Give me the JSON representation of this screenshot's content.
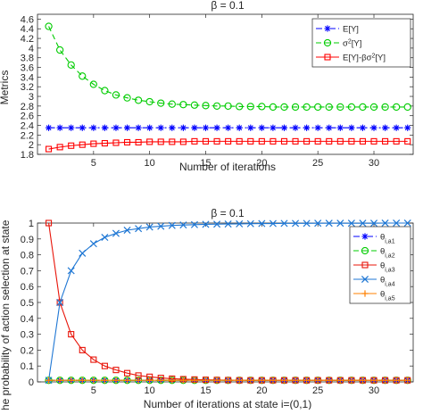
{
  "chart_data": [
    {
      "type": "line",
      "title": "β = 0.1",
      "xlabel": "Number of iterations",
      "ylabel": "Metrics",
      "xlim": [
        0,
        33.5
      ],
      "ylim": [
        1.8,
        4.7
      ],
      "xticks": [
        5,
        10,
        15,
        20,
        25,
        30
      ],
      "yticks": [
        1.8,
        2.0,
        2.2,
        2.4,
        2.6,
        2.8,
        3.0,
        3.2,
        3.4,
        3.6,
        3.8,
        4.0,
        4.2,
        4.4,
        4.6
      ],
      "ytick_labels": [
        "1.8",
        "2",
        "2.2",
        "2.4",
        "2.6",
        "2.8",
        "3",
        "3.2",
        "3.4",
        "3.6",
        "3.8",
        "4",
        "4.2",
        "4.4",
        "4.6"
      ],
      "grid": false,
      "legend_position": "top-right",
      "x": [
        1,
        2,
        3,
        4,
        5,
        6,
        7,
        8,
        9,
        10,
        11,
        12,
        13,
        14,
        15,
        16,
        17,
        18,
        19,
        20,
        21,
        22,
        23,
        24,
        25,
        26,
        27,
        28,
        29,
        30,
        31,
        32,
        33
      ],
      "series": [
        {
          "name": "E[Y]",
          "name_parts": [
            "E[Y]"
          ],
          "color": "#0000ff",
          "marker": "asterisk",
          "linestyle": "dashdot",
          "values": [
            2.35,
            2.35,
            2.35,
            2.35,
            2.35,
            2.35,
            2.35,
            2.35,
            2.35,
            2.35,
            2.35,
            2.35,
            2.35,
            2.35,
            2.35,
            2.35,
            2.35,
            2.35,
            2.35,
            2.35,
            2.35,
            2.35,
            2.35,
            2.35,
            2.35,
            2.35,
            2.35,
            2.35,
            2.35,
            2.35,
            2.35,
            2.35,
            2.35
          ]
        },
        {
          "name": "σ2[Y]",
          "name_parts": [
            "σ",
            "2",
            "[Y]"
          ],
          "color": "#00cc00",
          "marker": "circle",
          "linestyle": "dashed",
          "values": [
            4.45,
            3.96,
            3.65,
            3.42,
            3.25,
            3.12,
            3.03,
            2.97,
            2.92,
            2.89,
            2.86,
            2.84,
            2.83,
            2.82,
            2.81,
            2.8,
            2.8,
            2.79,
            2.79,
            2.79,
            2.78,
            2.78,
            2.78,
            2.78,
            2.78,
            2.78,
            2.78,
            2.78,
            2.78,
            2.78,
            2.78,
            2.78,
            2.78
          ]
        },
        {
          "name": "E[Y]-βσ2[Y]",
          "name_parts": [
            "E[Y]-βσ",
            "2",
            "[Y]"
          ],
          "color": "#ff0000",
          "marker": "square",
          "linestyle": "solid",
          "values": [
            1.91,
            1.95,
            1.98,
            2.0,
            2.02,
            2.03,
            2.04,
            2.05,
            2.05,
            2.06,
            2.06,
            2.06,
            2.06,
            2.07,
            2.07,
            2.07,
            2.07,
            2.07,
            2.07,
            2.07,
            2.07,
            2.07,
            2.07,
            2.07,
            2.07,
            2.07,
            2.07,
            2.07,
            2.07,
            2.07,
            2.07,
            2.07,
            2.07
          ]
        }
      ]
    },
    {
      "type": "line",
      "title": "β = 0.1",
      "xlabel": "Number of iterations at state i=(0,1)",
      "ylabel": "The probability of action selection at state",
      "xlim": [
        0,
        33.5
      ],
      "ylim": [
        0,
        1
      ],
      "xticks": [
        5,
        10,
        15,
        20,
        25,
        30
      ],
      "yticks": [
        0,
        0.1,
        0.2,
        0.3,
        0.4,
        0.5,
        0.6,
        0.7,
        0.8,
        0.9,
        1.0
      ],
      "ytick_labels": [
        "0",
        "0.1",
        "0.2",
        "0.3",
        "0.4",
        "0.5",
        "0.6",
        "0.7",
        "0.8",
        "0.9",
        "1"
      ],
      "grid": false,
      "legend_position": "right",
      "x": [
        1,
        2,
        3,
        4,
        5,
        6,
        7,
        8,
        9,
        10,
        11,
        12,
        13,
        14,
        15,
        16,
        17,
        18,
        19,
        20,
        21,
        22,
        23,
        24,
        25,
        26,
        27,
        28,
        29,
        30,
        31,
        32,
        33
      ],
      "series": [
        {
          "name": "θi,a1",
          "name_parts": [
            "θ",
            "i,a1"
          ],
          "color": "#0000ff",
          "marker": "asterisk",
          "linestyle": "dashdot",
          "values": [
            0.01,
            0.01,
            0.01,
            0.01,
            0.01,
            0.01,
            0.01,
            0.01,
            0.01,
            0.01,
            0.01,
            0.01,
            0.01,
            0.01,
            0.01,
            0.01,
            0.01,
            0.01,
            0.01,
            0.01,
            0.01,
            0.01,
            0.01,
            0.01,
            0.01,
            0.01,
            0.01,
            0.01,
            0.01,
            0.01,
            0.01,
            0.01,
            0.01
          ]
        },
        {
          "name": "θi,a2",
          "name_parts": [
            "θ",
            "i,a2"
          ],
          "color": "#00cc00",
          "marker": "circle",
          "linestyle": "dashed",
          "values": [
            0.01,
            0.01,
            0.01,
            0.01,
            0.01,
            0.01,
            0.01,
            0.01,
            0.01,
            0.01,
            0.01,
            0.01,
            0.01,
            0.01,
            0.01,
            0.01,
            0.01,
            0.01,
            0.01,
            0.01,
            0.01,
            0.01,
            0.01,
            0.01,
            0.01,
            0.01,
            0.01,
            0.01,
            0.01,
            0.01,
            0.01,
            0.01,
            0.01
          ]
        },
        {
          "name": "θi,a3",
          "name_parts": [
            "θ",
            "i,a3"
          ],
          "color": "#e8150a",
          "marker": "square",
          "linestyle": "solid",
          "values": [
            1.0,
            0.5,
            0.3,
            0.2,
            0.14,
            0.1,
            0.075,
            0.055,
            0.04,
            0.032,
            0.025,
            0.02,
            0.017,
            0.015,
            0.013,
            0.012,
            0.011,
            0.01,
            0.01,
            0.01,
            0.01,
            0.01,
            0.01,
            0.01,
            0.01,
            0.01,
            0.01,
            0.01,
            0.01,
            0.01,
            0.01,
            0.01,
            0.01
          ]
        },
        {
          "name": "θi,a4",
          "name_parts": [
            "θ",
            "i,a4"
          ],
          "color": "#1f77d4",
          "marker": "x",
          "linestyle": "solid",
          "values": [
            0.01,
            0.5,
            0.7,
            0.81,
            0.87,
            0.91,
            0.935,
            0.955,
            0.965,
            0.975,
            0.98,
            0.985,
            0.988,
            0.99,
            0.992,
            0.993,
            0.994,
            0.995,
            0.996,
            0.997,
            0.997,
            0.998,
            0.998,
            0.998,
            0.999,
            0.999,
            0.999,
            0.999,
            0.999,
            0.999,
            1.0,
            1.0,
            1.0
          ]
        },
        {
          "name": "θi,a5",
          "name_parts": [
            "θ",
            "i,a5"
          ],
          "color": "#ff8000",
          "marker": "plus",
          "linestyle": "solid",
          "values": [
            0.01,
            0.01,
            0.01,
            0.01,
            0.01,
            0.01,
            0.01,
            0.01,
            0.01,
            0.01,
            0.01,
            0.01,
            0.01,
            0.01,
            0.01,
            0.01,
            0.01,
            0.01,
            0.01,
            0.01,
            0.01,
            0.01,
            0.01,
            0.01,
            0.01,
            0.01,
            0.01,
            0.01,
            0.01,
            0.01,
            0.01,
            0.01,
            0.01
          ]
        }
      ]
    }
  ]
}
